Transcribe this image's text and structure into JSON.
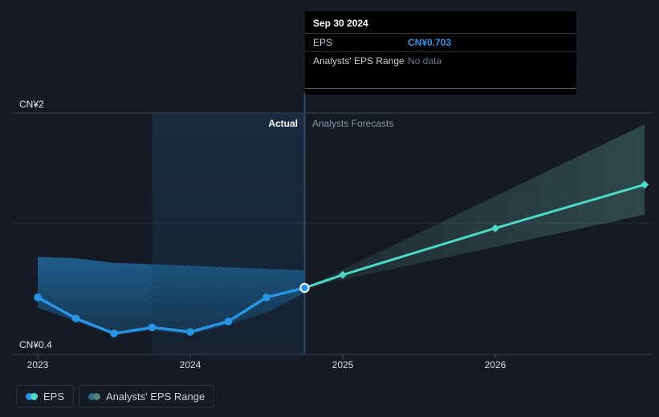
{
  "tooltip": {
    "date": "Sep 30 2024",
    "rows": [
      {
        "label": "EPS",
        "value": "CN¥0.703"
      },
      {
        "label": "Analysts' EPS Range",
        "value": "No data"
      }
    ]
  },
  "chart": {
    "actual_label": "Actual",
    "forecast_label": "Analysts Forecasts"
  },
  "axis": {
    "y_top_label": "CN¥2",
    "y_bottom_label": "CN¥0.4",
    "x_ticks": [
      "2023",
      "2024",
      "2025",
      "2026"
    ]
  },
  "legend": {
    "items": [
      {
        "label": "EPS",
        "dot_colors": [
          "#2394DF",
          "#4FD9C7"
        ]
      },
      {
        "label": "Analysts' EPS Range",
        "dot_colors": [
          "#2D6C8A",
          "#4E8477"
        ]
      }
    ]
  },
  "colors": {
    "background": "#151A24",
    "eps_line": "#2795E5",
    "forecast_line": "#4CDAC7",
    "past_range_color": "#2394DF",
    "forecast_range_color": "#6DBFB1",
    "highlight_band_color": "#2E7BC9",
    "gridline_top": "#3E4753",
    "gridline_mid": "rgba(255,255,255,0.08)",
    "axis_line": "#3A424E",
    "tick_color": "#4E5864",
    "crosshair": "#2B4965",
    "highlight_dot_ring": "#FFFFFF"
  },
  "chart_data": {
    "type": "line",
    "title": "EPS actual vs analysts forecast (CN¥)",
    "x_unit": "year",
    "xlim": [
      2023,
      2027.03
    ],
    "y_gridlines": [
      {
        "label": "CN¥2",
        "value": 2.0
      },
      {
        "label": "CN¥0.4",
        "value": 0.4
      }
    ],
    "x_ticks": [
      2023,
      2024,
      2025,
      2026
    ],
    "highlight": {
      "date": "Sep 30 2024",
      "x": 2024.75,
      "value": 0.703,
      "display": "CN¥0.703"
    },
    "highlight_band_x": [
      2023.75,
      2024.75
    ],
    "series": [
      {
        "name": "EPS",
        "kind": "actual",
        "x": [
          2023.0,
          2023.25,
          2023.5,
          2023.75,
          2024.0,
          2024.25,
          2024.5,
          2024.75
        ],
        "values": [
          0.64,
          0.5,
          0.4,
          0.44,
          0.41,
          0.48,
          0.64,
          0.703
        ]
      },
      {
        "name": "EPS forecast",
        "kind": "forecast",
        "x": [
          2024.75,
          2025.0,
          2026.0,
          2026.98
        ],
        "values": [
          0.703,
          0.79,
          1.1,
          1.39
        ]
      },
      {
        "name": "Analysts' EPS Range (past)",
        "kind": "band",
        "x": [
          2023.0,
          2023.25,
          2023.5,
          2023.75,
          2024.0,
          2024.25,
          2024.5,
          2024.75
        ],
        "low": [
          0.57,
          0.48,
          0.39,
          0.42,
          0.39,
          0.46,
          0.54,
          0.67
        ],
        "high": [
          0.91,
          0.9,
          0.87,
          0.86,
          0.85,
          0.84,
          0.83,
          0.82
        ]
      },
      {
        "name": "Analysts' EPS Range (forecast)",
        "kind": "band",
        "x": [
          2024.75,
          2026.98
        ],
        "low": [
          0.703,
          1.19
        ],
        "high": [
          0.703,
          1.79
        ]
      }
    ],
    "legend_position": "bottom-left",
    "grid": "horizontal-only"
  }
}
